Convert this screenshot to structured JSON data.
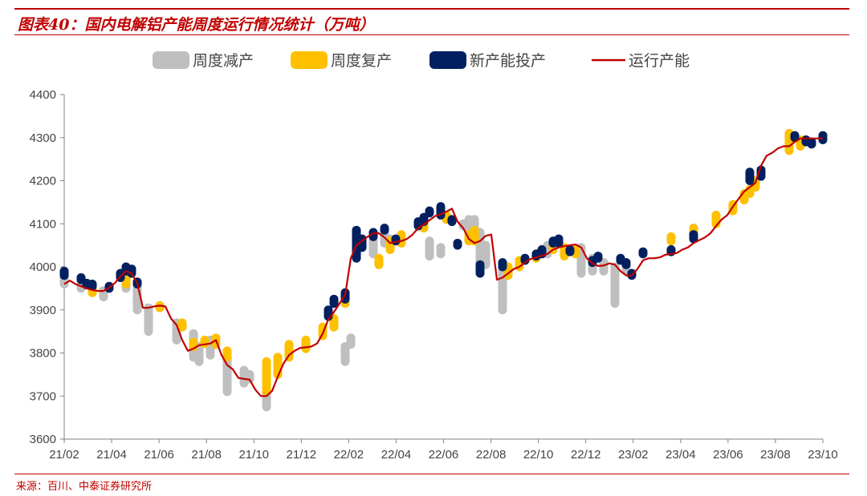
{
  "header": {
    "title": "图表40：国内电解铝产能周度运行情况统计（万吨）"
  },
  "footer": {
    "source": "来源：百川、中泰证券研究所"
  },
  "colors": {
    "reduce": "#bfbfbf",
    "resume": "#ffc000",
    "new": "#002060",
    "operating": "#c00000",
    "accent": "#c00000"
  },
  "chart_data": {
    "type": "line",
    "title": "",
    "xlabel": "",
    "ylabel": "",
    "ylim": [
      3600,
      4400
    ],
    "yticks": [
      "3600",
      "3700",
      "3800",
      "3900",
      "4000",
      "4100",
      "4200",
      "4300",
      "4400"
    ],
    "xticks": [
      "21/02",
      "21/04",
      "21/06",
      "21/08",
      "21/10",
      "21/12",
      "22/02",
      "22/04",
      "22/06",
      "22/08",
      "22/10",
      "22/12",
      "23/02",
      "23/04",
      "23/06",
      "23/08",
      "23/10"
    ],
    "legend": [
      "周度减产",
      "周度复产",
      "新产能投产",
      "运行产能"
    ],
    "legend_position": "top",
    "grid": false,
    "operating_capacity": [
      3960,
      3968,
      3960,
      3955,
      3950,
      3946,
      3944,
      3944,
      3952,
      3962,
      3978,
      3990,
      3985,
      3962,
      3905,
      3905,
      3908,
      3910,
      3908,
      3880,
      3865,
      3830,
      3805,
      3810,
      3818,
      3820,
      3822,
      3830,
      3795,
      3772,
      3762,
      3742,
      3740,
      3738,
      3715,
      3700,
      3700,
      3712,
      3745,
      3775,
      3795,
      3805,
      3812,
      3813,
      3815,
      3822,
      3845,
      3878,
      3895,
      3915,
      3935,
      4020,
      4050,
      4060,
      4070,
      4078,
      4078,
      4068,
      4055,
      4058,
      4060,
      4065,
      4075,
      4090,
      4098,
      4108,
      4118,
      4122,
      4128,
      4135,
      4105,
      4090,
      4065,
      4055,
      4060,
      4072,
      4075,
      3970,
      3975,
      3985,
      3995,
      4000,
      4010,
      4018,
      4022,
      4026,
      4030,
      4040,
      4045,
      4048,
      4050,
      4052,
      4045,
      4020,
      4008,
      4002,
      4003,
      4008,
      4005,
      3990,
      3980,
      3980,
      3995,
      4015,
      4020,
      4020,
      4022,
      4028,
      4030,
      4032,
      4040,
      4045,
      4055,
      4062,
      4068,
      4078,
      4095,
      4110,
      4120,
      4140,
      4158,
      4175,
      4185,
      4195,
      4235,
      4258,
      4265,
      4275,
      4280,
      4280,
      4290,
      4298,
      4298,
      4298,
      4298,
      4298
    ],
    "weekly_reduction": [
      [
        3985,
        3960
      ],
      [
        3960,
        3950
      ],
      [
        3955,
        3940
      ],
      [
        3945,
        3930
      ],
      [
        3970,
        3950
      ],
      [
        3962,
        3900
      ],
      [
        3905,
        3850
      ],
      [
        3870,
        3830
      ],
      [
        3845,
        3790
      ],
      [
        3815,
        3780
      ],
      [
        3830,
        3795
      ],
      [
        3800,
        3710
      ],
      [
        3760,
        3730
      ],
      [
        3750,
        3740
      ],
      [
        3725,
        3675
      ],
      [
        3815,
        3780
      ],
      [
        3835,
        3820
      ],
      [
        4085,
        4025
      ],
      [
        4065,
        4030
      ],
      [
        4080,
        4055
      ],
      [
        4065,
        4040
      ],
      [
        4060,
        4025
      ],
      [
        4045,
        4030
      ],
      [
        4100,
        4095
      ],
      [
        4110,
        4080
      ],
      [
        4110,
        4060
      ],
      [
        4080,
        4000
      ],
      [
        4050,
        4005
      ],
      [
        4000,
        3900
      ],
      [
        4050,
        4030
      ],
      [
        4045,
        3985
      ],
      [
        4020,
        3990
      ],
      [
        4010,
        3990
      ],
      [
        4000,
        3915
      ],
      [
        4010,
        3990
      ]
    ],
    "weekly_resumption": [
      [
        3960,
        3940
      ],
      [
        3980,
        3960
      ],
      [
        3910,
        3905
      ],
      [
        3870,
        3860
      ],
      [
        3825,
        3815
      ],
      [
        3830,
        3822
      ],
      [
        3835,
        3820
      ],
      [
        3805,
        3790
      ],
      [
        3780,
        3710
      ],
      [
        3790,
        3750
      ],
      [
        3820,
        3790
      ],
      [
        3830,
        3810
      ],
      [
        3860,
        3840
      ],
      [
        3880,
        3860
      ],
      [
        3935,
        3915
      ],
      [
        4020,
        4005
      ],
      [
        4060,
        4040
      ],
      [
        4075,
        4055
      ],
      [
        4100,
        4090
      ],
      [
        4120,
        4110
      ],
      [
        4075,
        4060
      ],
      [
        4085,
        4060
      ],
      [
        4000,
        3980
      ],
      [
        4015,
        4000
      ],
      [
        4030,
        4020
      ],
      [
        4050,
        4040
      ],
      [
        4045,
        4025
      ],
      [
        4040,
        4030
      ],
      [
        4070,
        4060
      ],
      [
        4090,
        4075
      ],
      [
        4120,
        4100
      ],
      [
        4145,
        4130
      ],
      [
        4170,
        4155
      ],
      [
        4180,
        4170
      ],
      [
        4200,
        4185
      ],
      [
        4310,
        4270
      ],
      [
        4295,
        4280
      ]
    ],
    "new_capacity": [
      [
        3990,
        3980
      ],
      [
        3975,
        3970
      ],
      [
        3962,
        3958
      ],
      [
        3960,
        3955
      ],
      [
        3955,
        3950
      ],
      [
        3985,
        3975
      ],
      [
        4000,
        3990
      ],
      [
        3995,
        3985
      ],
      [
        3965,
        3960
      ],
      [
        3900,
        3885
      ],
      [
        3925,
        3915
      ],
      [
        3940,
        3925
      ],
      [
        4085,
        4020
      ],
      [
        4065,
        4045
      ],
      [
        4080,
        4070
      ],
      [
        4090,
        4085
      ],
      [
        4065,
        4060
      ],
      [
        4105,
        4095
      ],
      [
        4115,
        4105
      ],
      [
        4130,
        4125
      ],
      [
        4140,
        4120
      ],
      [
        4110,
        4105
      ],
      [
        4055,
        4050
      ],
      [
        4005,
        3985
      ],
      [
        4010,
        4000
      ],
      [
        4020,
        4015
      ],
      [
        4030,
        4025
      ],
      [
        4040,
        4030
      ],
      [
        4060,
        4055
      ],
      [
        4065,
        4055
      ],
      [
        4040,
        4035
      ],
      [
        4015,
        4010
      ],
      [
        4025,
        4020
      ],
      [
        4020,
        4015
      ],
      [
        4010,
        4005
      ],
      [
        3985,
        3980
      ],
      [
        4030,
        4035
      ],
      [
        4040,
        4035
      ],
      [
        4075,
        4065
      ],
      [
        4220,
        4200
      ],
      [
        4225,
        4210
      ],
      [
        4305,
        4300
      ],
      [
        4295,
        4290
      ],
      [
        4290,
        4285
      ],
      [
        4305,
        4295
      ]
    ]
  }
}
